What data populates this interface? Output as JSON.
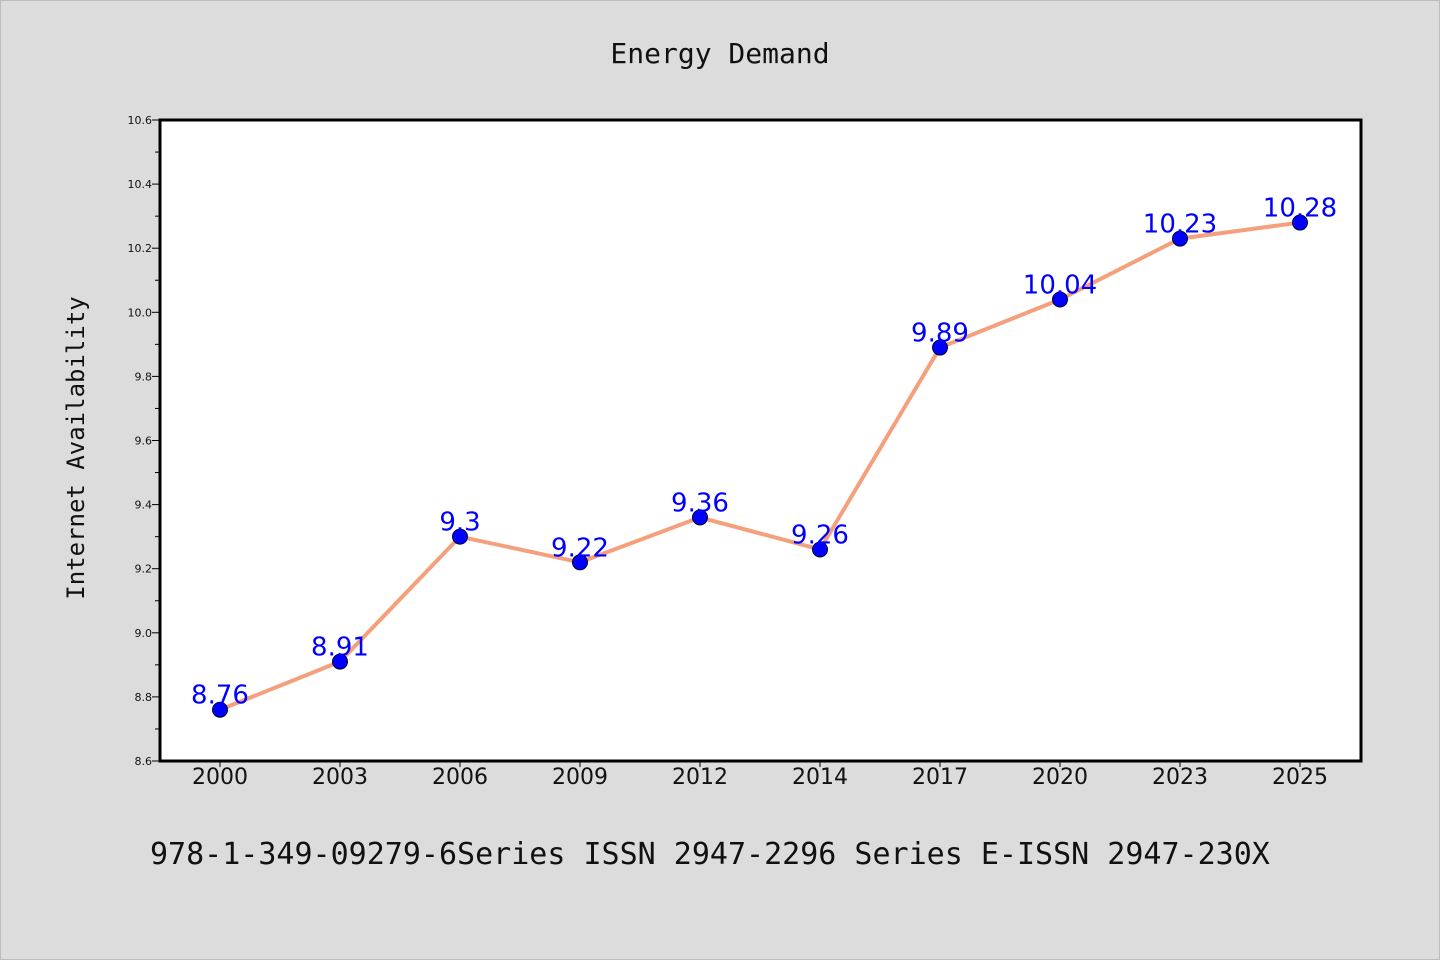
{
  "chart_data": {
    "type": "line",
    "title": "Energy Demand",
    "xlabel": "",
    "ylabel": "Internet Availability",
    "categories": [
      "2000",
      "2003",
      "2006",
      "2009",
      "2012",
      "2014",
      "2017",
      "2020",
      "2023",
      "2025"
    ],
    "values": [
      8.76,
      8.91,
      9.3,
      9.22,
      9.36,
      9.26,
      9.89,
      10.04,
      10.23,
      10.28
    ],
    "data_labels": [
      "8.76",
      "8.91",
      "9.3",
      "9.22",
      "9.36",
      "9.26",
      "9.89",
      "10.04",
      "10.23",
      "10.28"
    ],
    "ylim": [
      8.6,
      10.6
    ],
    "yticks": [
      "8.6",
      "8.8",
      "9.0",
      "9.2",
      "9.4",
      "9.6",
      "9.8",
      "10.0",
      "10.2",
      "10.4",
      "10.6"
    ],
    "grid": false,
    "legend": "none",
    "colors": {
      "line": "#f4a07c",
      "marker": "#0000ff",
      "label": "#0000ff",
      "background": "#dcdcdc",
      "plot_area": "#ffffff"
    }
  },
  "caption": "978-1-349-09279-6Series ISSN 2947-2296 Series E-ISSN 2947-230X"
}
